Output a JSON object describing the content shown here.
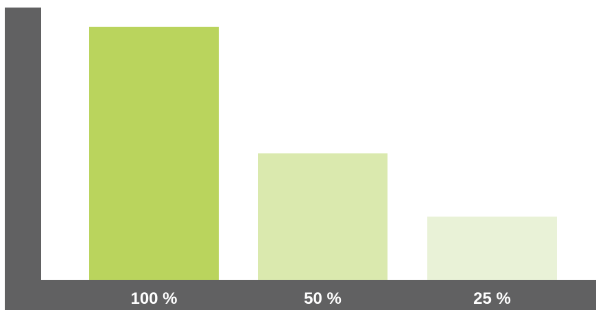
{
  "chart_data": {
    "type": "bar",
    "categories": [
      "100 %",
      "50 %",
      "25 %"
    ],
    "values": [
      100,
      50,
      25
    ],
    "title": "",
    "xlabel": "",
    "ylabel": "",
    "ylim": [
      0,
      100
    ],
    "grid": false,
    "legend": "none",
    "colors": {
      "bars": [
        "#bad45d",
        "#dae9ae",
        "#e9f2d7"
      ],
      "axis": "#616162",
      "tick_label": "#ffffff",
      "background": "#ffffff"
    }
  }
}
